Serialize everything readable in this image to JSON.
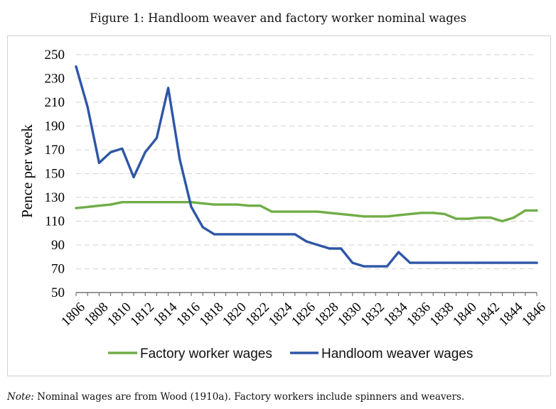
{
  "figure_caption": "Figure 1: Handloom weaver and factory worker nominal wages",
  "note": {
    "label": "Note:",
    "text": "Nominal wages are from Wood (1910a). Factory workers include spinners and weavers."
  },
  "colors": {
    "factory": "#70ad47",
    "handloom": "#2e56a6",
    "grid": "#d9d9d9",
    "axis": "#595959"
  },
  "chart_data": {
    "type": "line",
    "title": "",
    "xlabel": "",
    "ylabel": "Pence per week",
    "ylim": [
      50,
      250
    ],
    "yticks": [
      50,
      70,
      90,
      110,
      130,
      150,
      170,
      190,
      210,
      230,
      250
    ],
    "xlim": [
      1806,
      1846
    ],
    "xticks": [
      1806,
      1808,
      1810,
      1812,
      1814,
      1816,
      1818,
      1820,
      1822,
      1824,
      1826,
      1828,
      1830,
      1832,
      1834,
      1836,
      1838,
      1840,
      1842,
      1844,
      1846
    ],
    "grid": "horizontal dashed",
    "legend_position": "bottom",
    "x": [
      1806,
      1807,
      1808,
      1809,
      1810,
      1811,
      1812,
      1813,
      1814,
      1815,
      1816,
      1817,
      1818,
      1819,
      1820,
      1821,
      1822,
      1823,
      1824,
      1825,
      1826,
      1827,
      1828,
      1829,
      1830,
      1831,
      1832,
      1833,
      1834,
      1835,
      1836,
      1837,
      1838,
      1839,
      1840,
      1841,
      1842,
      1843,
      1844,
      1845,
      1846
    ],
    "series": [
      {
        "name": "Factory worker wages",
        "color": "#70ad47",
        "values": [
          121,
          122,
          123,
          124,
          126,
          126,
          126,
          126,
          126,
          126,
          126,
          125,
          124,
          124,
          124,
          123,
          123,
          118,
          118,
          118,
          118,
          118,
          117,
          116,
          115,
          114,
          114,
          114,
          115,
          116,
          117,
          117,
          116,
          112,
          112,
          113,
          113,
          110,
          113,
          119,
          119
        ]
      },
      {
        "name": "Handloom weaver wages",
        "color": "#2e56a6",
        "values": [
          240,
          206,
          159,
          168,
          171,
          147,
          168,
          180,
          222,
          162,
          122,
          105,
          99,
          99,
          99,
          99,
          99,
          99,
          99,
          99,
          93,
          90,
          87,
          87,
          75,
          72,
          72,
          72,
          84,
          75,
          75,
          75,
          75,
          75,
          75,
          75,
          75,
          75,
          75,
          75,
          75
        ]
      }
    ]
  }
}
